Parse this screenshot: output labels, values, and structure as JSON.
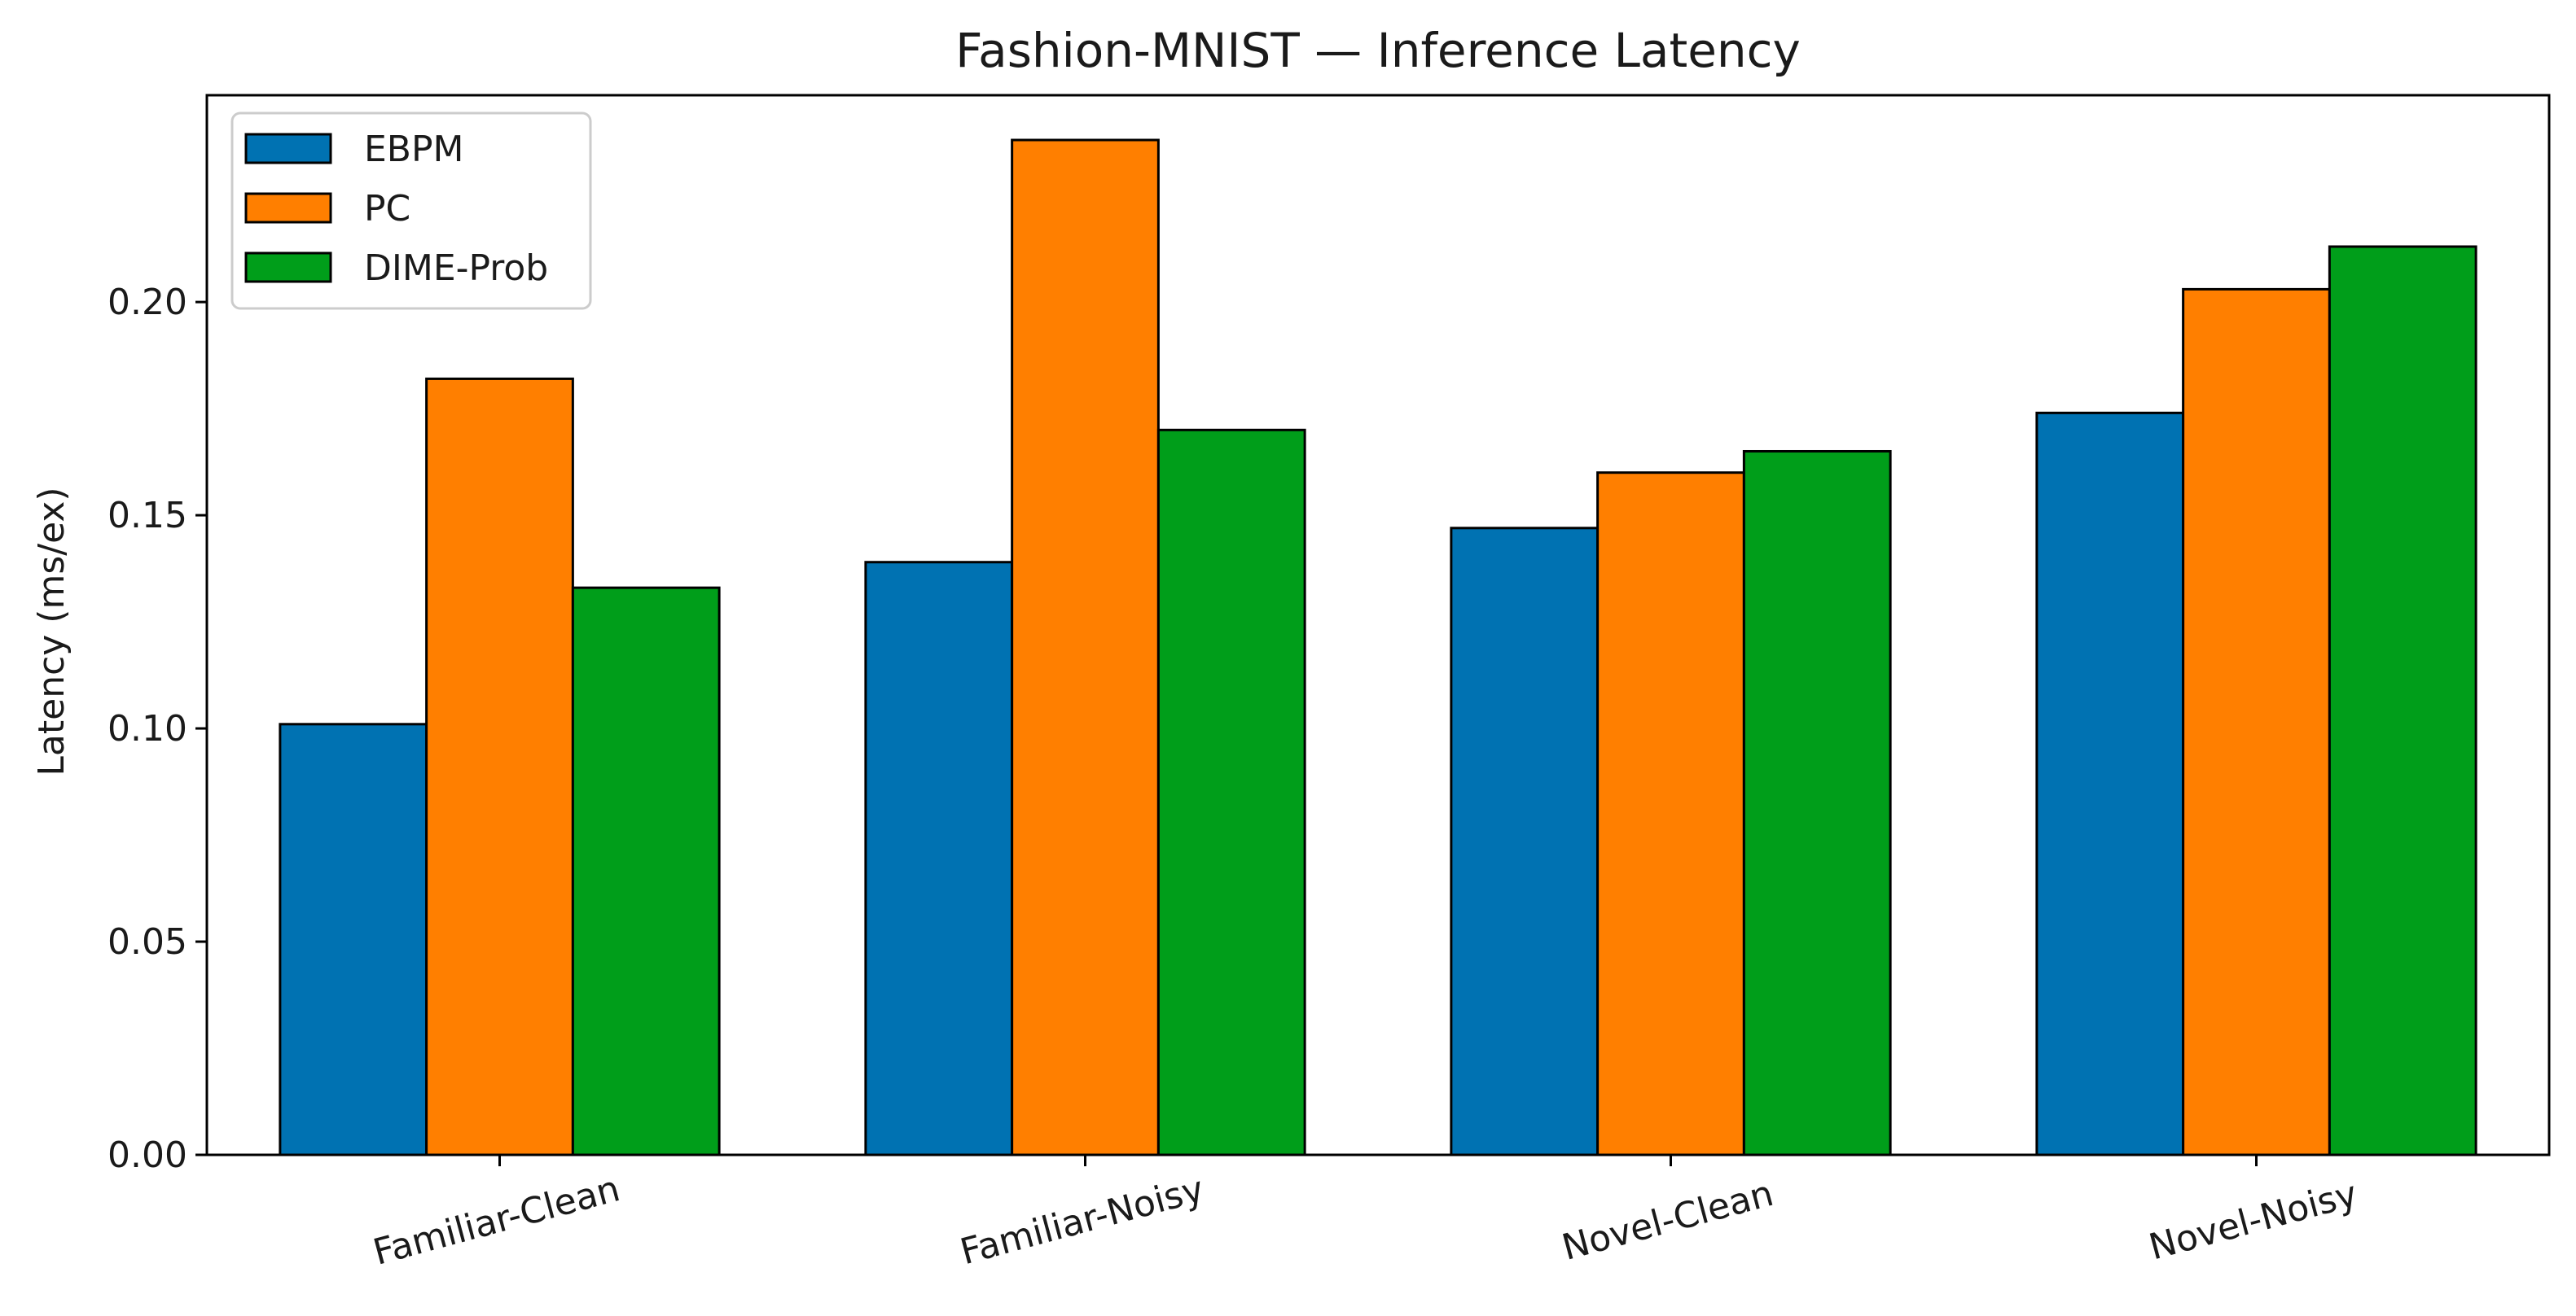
{
  "chart_data": {
    "type": "bar",
    "title": "Fashion-MNIST — Inference Latency",
    "xlabel": "",
    "ylabel": "Latency (ms/ex)",
    "categories": [
      "Familiar-Clean",
      "Familiar-Noisy",
      "Novel-Clean",
      "Novel-Noisy"
    ],
    "series": [
      {
        "name": "EBPM",
        "color": "#0072B2",
        "values": [
          0.101,
          0.139,
          0.147,
          0.174
        ]
      },
      {
        "name": "PC",
        "color": "#FF7F00",
        "values": [
          0.182,
          0.238,
          0.16,
          0.203
        ]
      },
      {
        "name": "DIME-Prob",
        "color": "#009E1A",
        "values": [
          0.133,
          0.17,
          0.165,
          0.213
        ]
      }
    ],
    "ylim": [
      0,
      0.2485
    ],
    "yticks": [
      0.0,
      0.05,
      0.1,
      0.15,
      0.2
    ],
    "ytick_labels": [
      "0.00",
      "0.05",
      "0.10",
      "0.15",
      "0.20"
    ],
    "grid": false,
    "legend_position": "top-left",
    "xtick_rotation": -15
  }
}
